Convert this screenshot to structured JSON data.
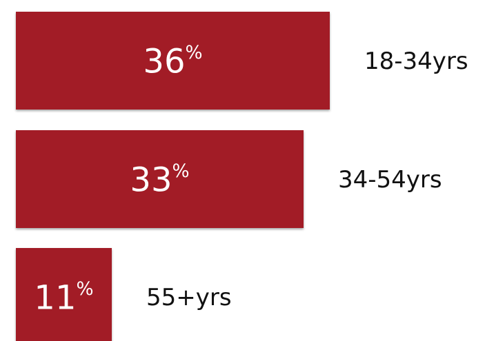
{
  "chart_data": {
    "type": "bar",
    "orientation": "horizontal",
    "title": "",
    "xlabel": "",
    "ylabel": "",
    "unit": "%",
    "categories": [
      "18-34yrs",
      "34-54yrs",
      "55+yrs"
    ],
    "values": [
      36,
      33,
      11
    ],
    "value_labels": [
      "36",
      "33",
      "11"
    ],
    "xlim": [
      0,
      36
    ],
    "grid": false,
    "legend": "none",
    "bar_color": "#A21E28",
    "label_color": "#ffffff",
    "category_color": "#111111"
  }
}
